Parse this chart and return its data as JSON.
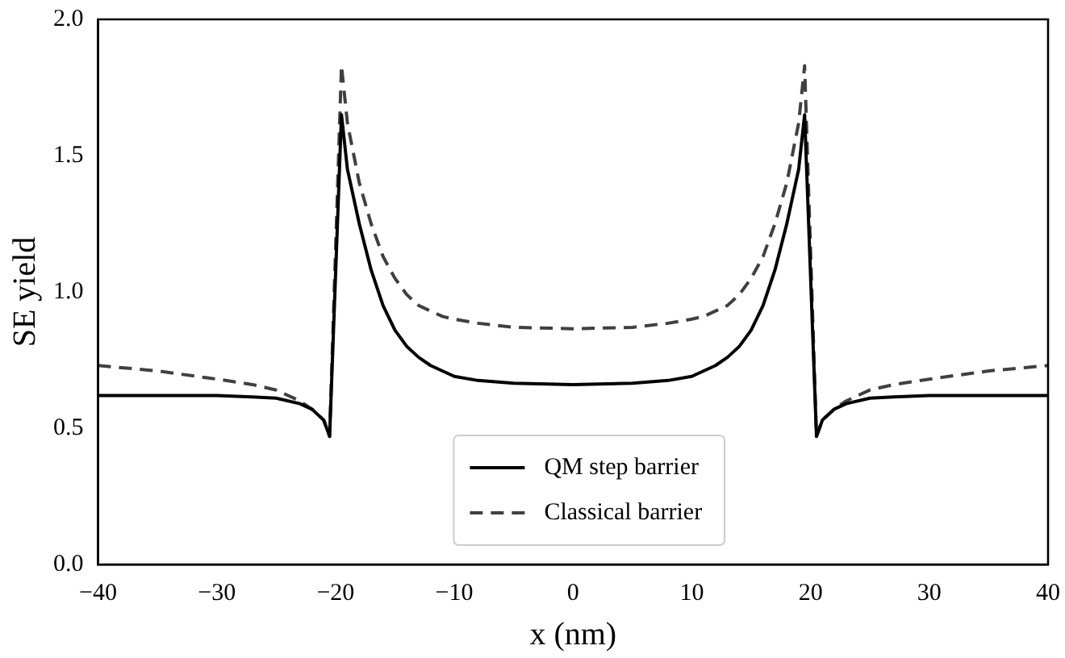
{
  "chart_data": {
    "type": "line",
    "xlabel": "x (nm)",
    "ylabel": "SE yield",
    "xlim": [
      -40,
      40
    ],
    "ylim": [
      0,
      2
    ],
    "xticks": [
      -40,
      -30,
      -20,
      -10,
      0,
      10,
      20,
      30,
      40
    ],
    "yticks": [
      {
        "value": 0,
        "label": "0.0"
      },
      0.5,
      {
        "value": 1,
        "label": "1.0"
      },
      1.5,
      {
        "value": 2,
        "label": "2.0"
      }
    ],
    "grid": false,
    "legend": "bottom",
    "marker": "none",
    "series": [
      {
        "name": "QM step barrier",
        "color": "#000000",
        "line_style": "solid",
        "x": [
          -40,
          -35,
          -30,
          -27,
          -25,
          -23,
          -22,
          -21,
          -20.5,
          -19.5,
          -19,
          -18,
          -17,
          -16,
          -15,
          -14,
          -13,
          -12,
          -11,
          -10,
          -8,
          -5,
          0,
          5,
          8,
          10,
          11,
          12,
          13,
          14,
          15,
          16,
          17,
          18,
          19,
          19.5,
          20.5,
          21,
          22,
          23,
          25,
          27,
          30,
          35,
          40
        ],
        "values": [
          0.62,
          0.62,
          0.62,
          0.615,
          0.61,
          0.59,
          0.57,
          0.53,
          0.47,
          1.65,
          1.45,
          1.25,
          1.08,
          0.95,
          0.86,
          0.8,
          0.76,
          0.73,
          0.71,
          0.69,
          0.675,
          0.665,
          0.66,
          0.665,
          0.675,
          0.69,
          0.71,
          0.73,
          0.76,
          0.8,
          0.86,
          0.95,
          1.08,
          1.25,
          1.45,
          1.65,
          0.47,
          0.53,
          0.57,
          0.59,
          0.61,
          0.615,
          0.62,
          0.62,
          0.62
        ]
      },
      {
        "name": "Classical barrier",
        "color": "#404040",
        "line_style": "dashed",
        "x": [
          -40,
          -35,
          -30,
          -27,
          -25,
          -23,
          -22,
          -21,
          -20.5,
          -19.5,
          -19,
          -18,
          -17,
          -16,
          -15,
          -14,
          -13,
          -12,
          -11,
          -10,
          -8,
          -5,
          0,
          5,
          8,
          10,
          11,
          12,
          13,
          14,
          15,
          16,
          17,
          18,
          19,
          19.5,
          20.5,
          21,
          22,
          23,
          25,
          27,
          30,
          35,
          40
        ],
        "values": [
          0.73,
          0.71,
          0.68,
          0.66,
          0.64,
          0.6,
          0.57,
          0.53,
          0.47,
          1.83,
          1.62,
          1.4,
          1.25,
          1.13,
          1.05,
          0.99,
          0.95,
          0.93,
          0.91,
          0.9,
          0.885,
          0.87,
          0.865,
          0.87,
          0.885,
          0.9,
          0.91,
          0.93,
          0.95,
          0.99,
          1.05,
          1.13,
          1.25,
          1.4,
          1.62,
          1.83,
          0.47,
          0.53,
          0.57,
          0.6,
          0.64,
          0.66,
          0.68,
          0.71,
          0.73
        ]
      }
    ]
  }
}
